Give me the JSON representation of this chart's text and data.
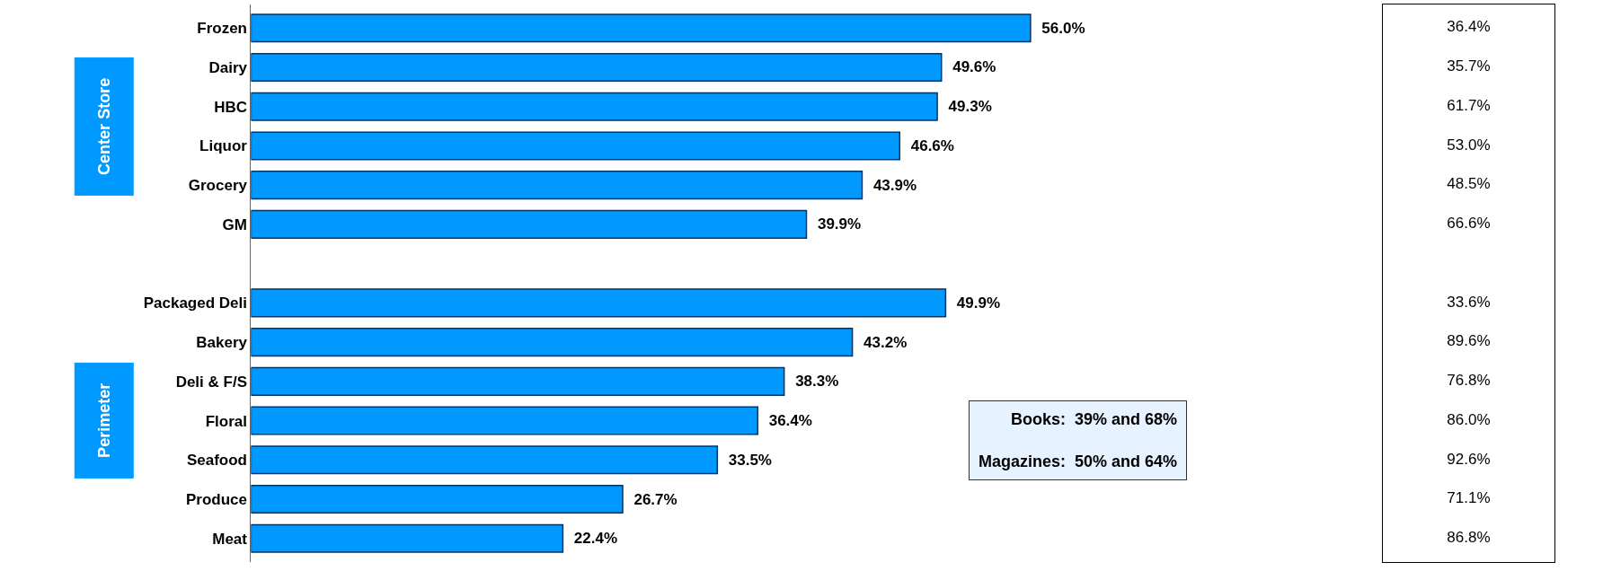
{
  "chart_data": [
    {
      "type": "bar",
      "orientation": "horizontal",
      "color": "#0099ff",
      "categories": [
        "Frozen",
        "Dairy",
        "HBC",
        "Liquor",
        "Grocery",
        "GM",
        null,
        "Packaged Deli",
        "Bakery",
        "Deli & F/S",
        "Floral",
        "Seafood",
        "Produce",
        "Meat"
      ],
      "values": [
        56.0,
        49.6,
        49.3,
        46.6,
        43.9,
        39.9,
        null,
        49.9,
        43.2,
        38.3,
        36.4,
        33.5,
        26.7,
        22.4
      ],
      "value_labels": [
        "56.0%",
        "49.6%",
        "49.3%",
        "46.6%",
        "43.9%",
        "39.9%",
        null,
        "49.9%",
        "43.2%",
        "38.3%",
        "36.4%",
        "33.5%",
        "26.7%",
        "22.4%"
      ],
      "annotations": [
        "Center Store",
        "Perimeter",
        "Books:  39% and 68%",
        "Magazines:  50% and 64%"
      ]
    },
    {
      "type": "other",
      "values": [
        36.4,
        35.7,
        61.7,
        53.0,
        48.5,
        66.6,
        null,
        33.6,
        89.6,
        76.8,
        86.0,
        92.6,
        71.1,
        86.8
      ],
      "value_labels": [
        "36.4%",
        "35.7%",
        "61.7%",
        "53.0%",
        "48.5%",
        "66.6%",
        null,
        "33.6%",
        "89.6%",
        "76.8%",
        "86.0%",
        "92.6%",
        "71.1%",
        "86.8%"
      ]
    }
  ]
}
